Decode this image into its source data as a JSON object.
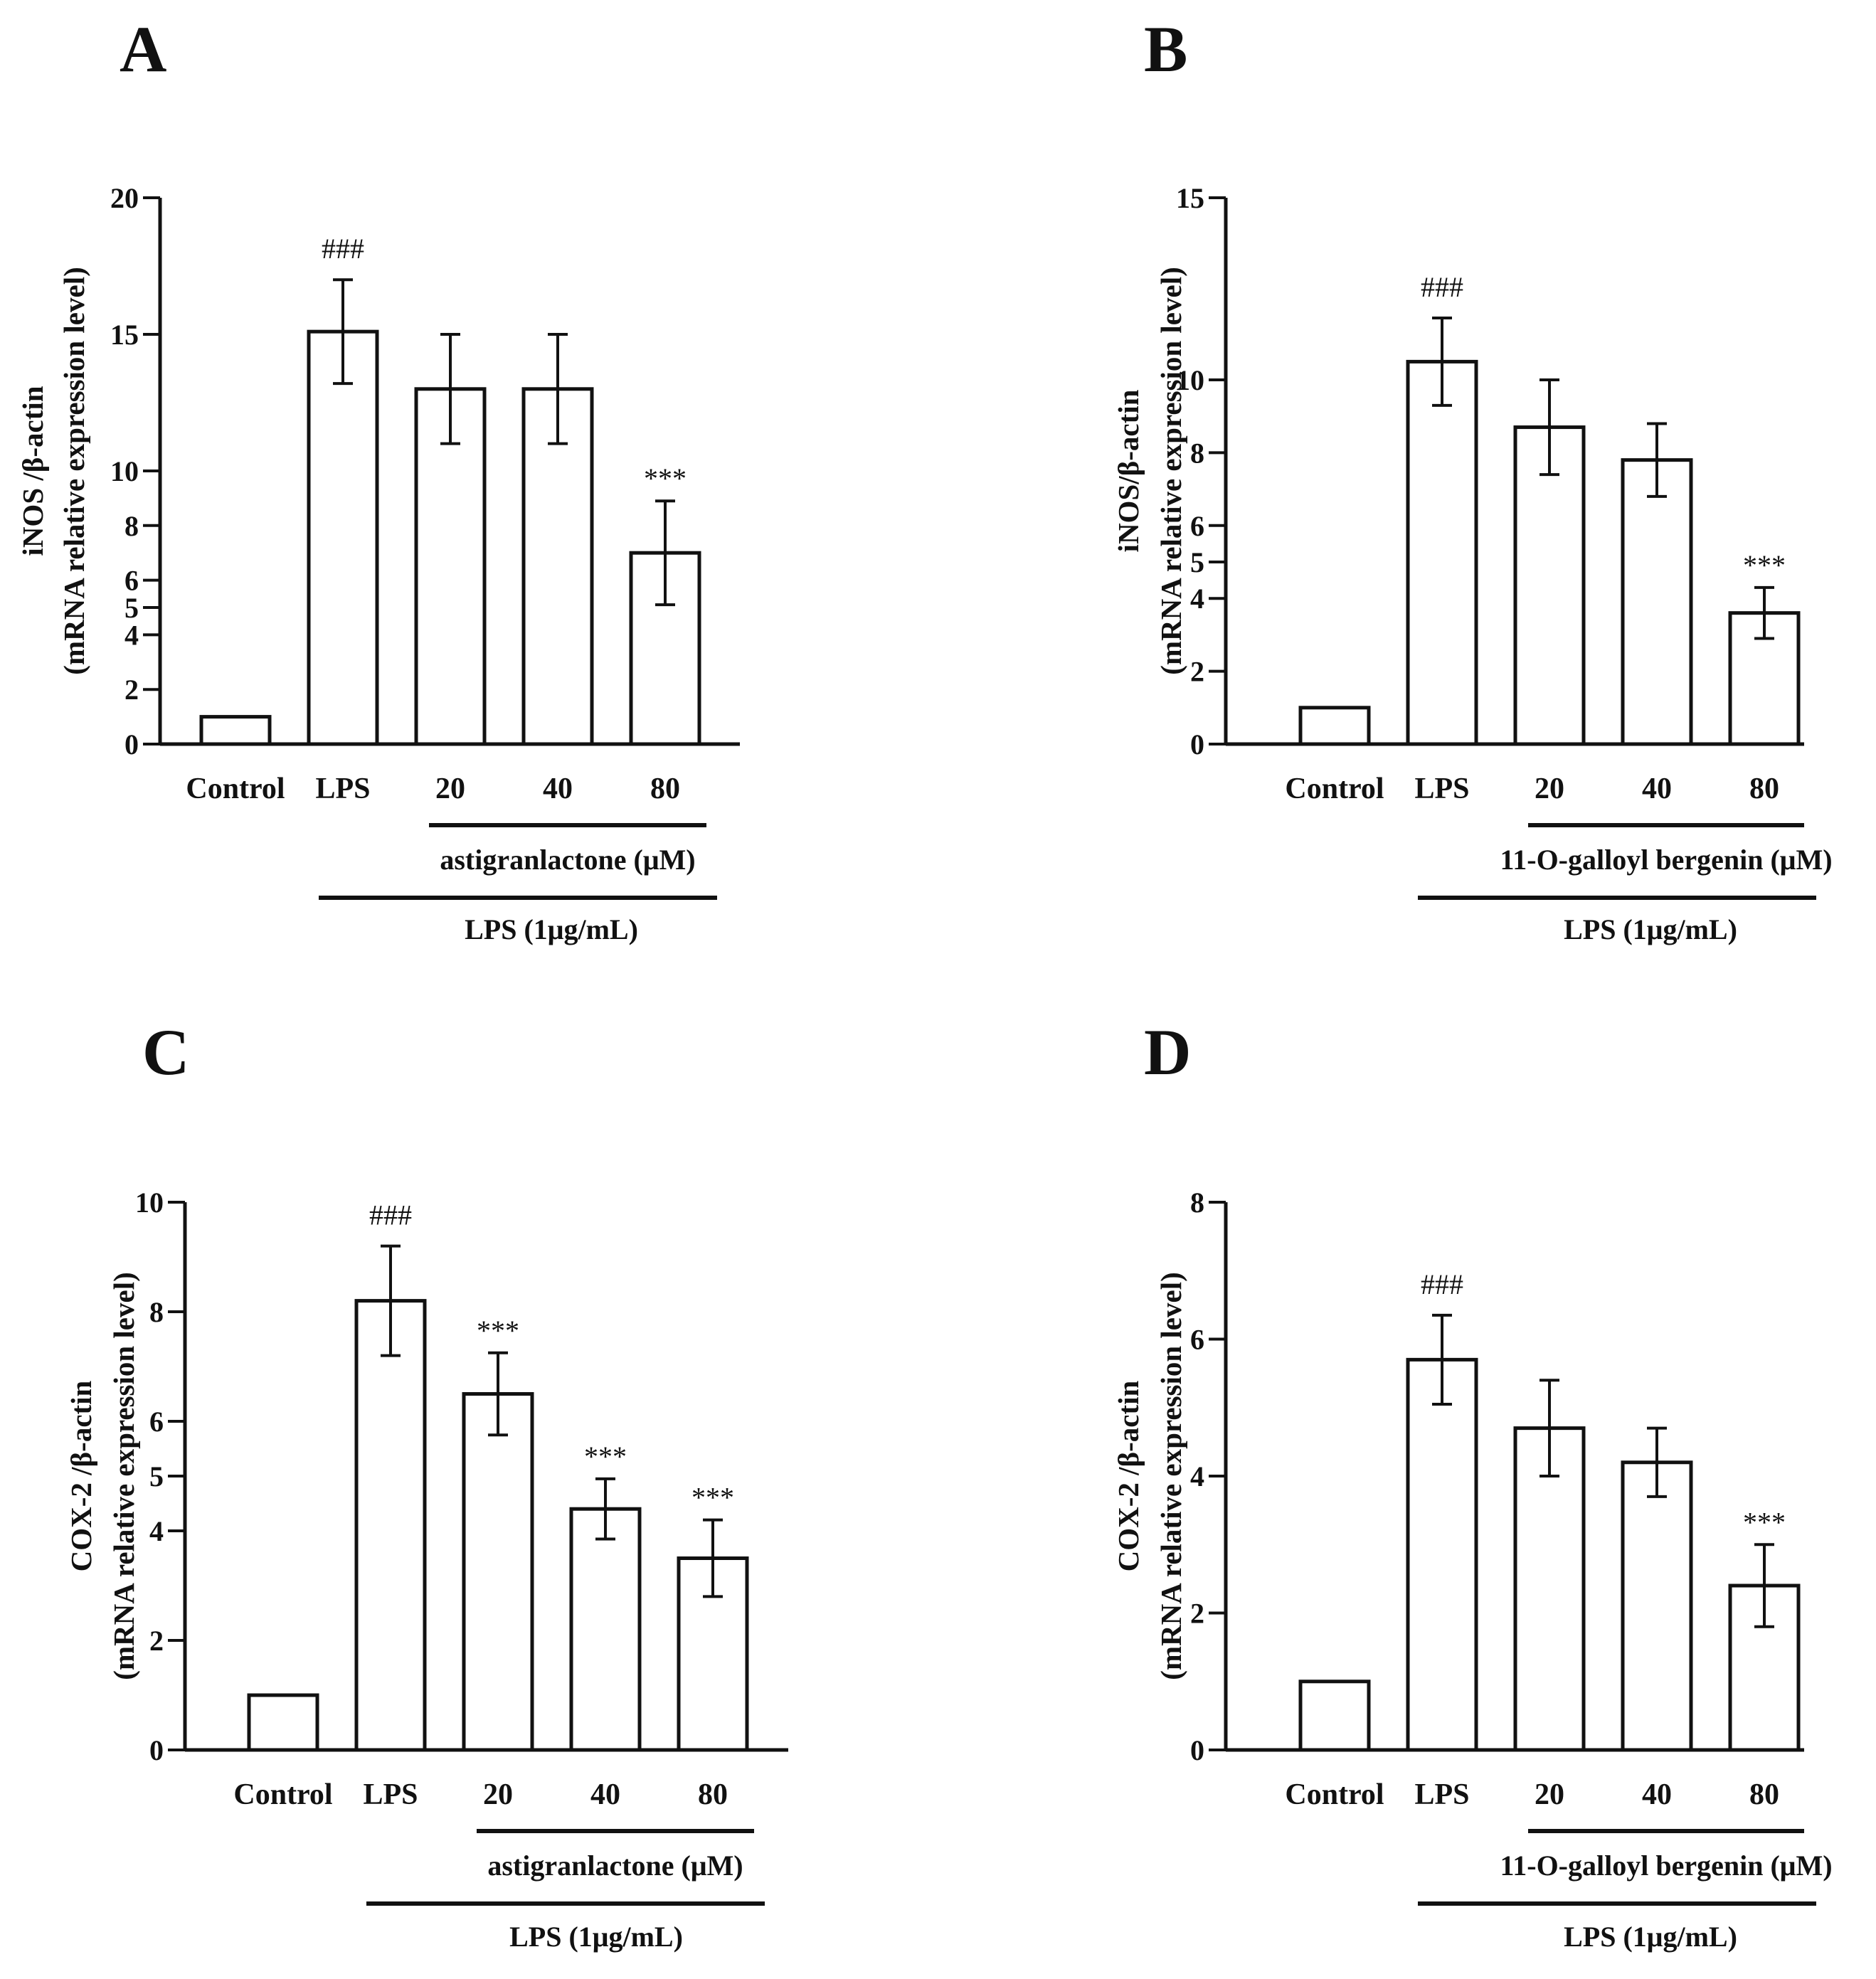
{
  "chart_data": [
    {
      "panel": "A",
      "type": "bar",
      "categories": [
        "Control",
        "LPS",
        "20",
        "40",
        "80"
      ],
      "values": [
        1.0,
        15.1,
        13.0,
        13.0,
        7.0
      ],
      "errors": [
        0,
        1.9,
        2.0,
        2.0,
        1.9
      ],
      "annotations": [
        "",
        "###",
        "",
        "",
        "***"
      ],
      "ylabel_line1": "iNOS /β-actin",
      "ylabel_line2": "(mRNA relative expression level)",
      "yticks": [
        0,
        2,
        4,
        5,
        6,
        8,
        10,
        15,
        20
      ],
      "ylim": [
        0,
        20
      ],
      "treatment_label": "astigranlactone (μM)",
      "lps_label": "LPS (1μg/mL)"
    },
    {
      "panel": "B",
      "type": "bar",
      "categories": [
        "Control",
        "LPS",
        "20",
        "40",
        "80"
      ],
      "values": [
        1.0,
        10.5,
        8.7,
        7.8,
        3.6
      ],
      "errors": [
        0,
        1.2,
        1.3,
        1.0,
        0.7
      ],
      "annotations": [
        "",
        "###",
        "",
        "",
        "***"
      ],
      "ylabel_line1": "iNOS/β-actin",
      "ylabel_line2": "(mRNA relative expression level)",
      "yticks": [
        0,
        2,
        4,
        5,
        6,
        8,
        10,
        15
      ],
      "ylim": [
        0,
        15
      ],
      "treatment_label": "11-O-galloyl bergenin (μM)",
      "lps_label": "LPS (1μg/mL)"
    },
    {
      "panel": "C",
      "type": "bar",
      "categories": [
        "Control",
        "LPS",
        "20",
        "40",
        "80"
      ],
      "values": [
        1.0,
        8.2,
        6.5,
        4.4,
        3.5
      ],
      "errors": [
        0,
        1.0,
        0.75,
        0.55,
        0.7
      ],
      "annotations": [
        "",
        "###",
        "***",
        "***",
        "***"
      ],
      "ylabel_line1": "COX-2 /β-actin",
      "ylabel_line2": "(mRNA relative expression level)",
      "yticks": [
        0,
        2,
        4,
        5,
        6,
        8,
        10
      ],
      "ylim": [
        0,
        10
      ],
      "treatment_label": "astigranlactone (μM)",
      "lps_label": "LPS (1μg/mL)"
    },
    {
      "panel": "D",
      "type": "bar",
      "categories": [
        "Control",
        "LPS",
        "20",
        "40",
        "80"
      ],
      "values": [
        1.0,
        5.7,
        4.7,
        4.2,
        2.4
      ],
      "errors": [
        0,
        0.65,
        0.7,
        0.5,
        0.6
      ],
      "annotations": [
        "",
        "###",
        "",
        "",
        "***"
      ],
      "ylabel_line1": "COX-2 /β-actin",
      "ylabel_line2": "(mRNA relative expression level)",
      "yticks": [
        0,
        2,
        4,
        6,
        8
      ],
      "ylim": [
        0,
        8
      ],
      "treatment_label": "11-O-galloyl bergenin (μM)",
      "lps_label": "LPS (1μg/mL)"
    }
  ]
}
